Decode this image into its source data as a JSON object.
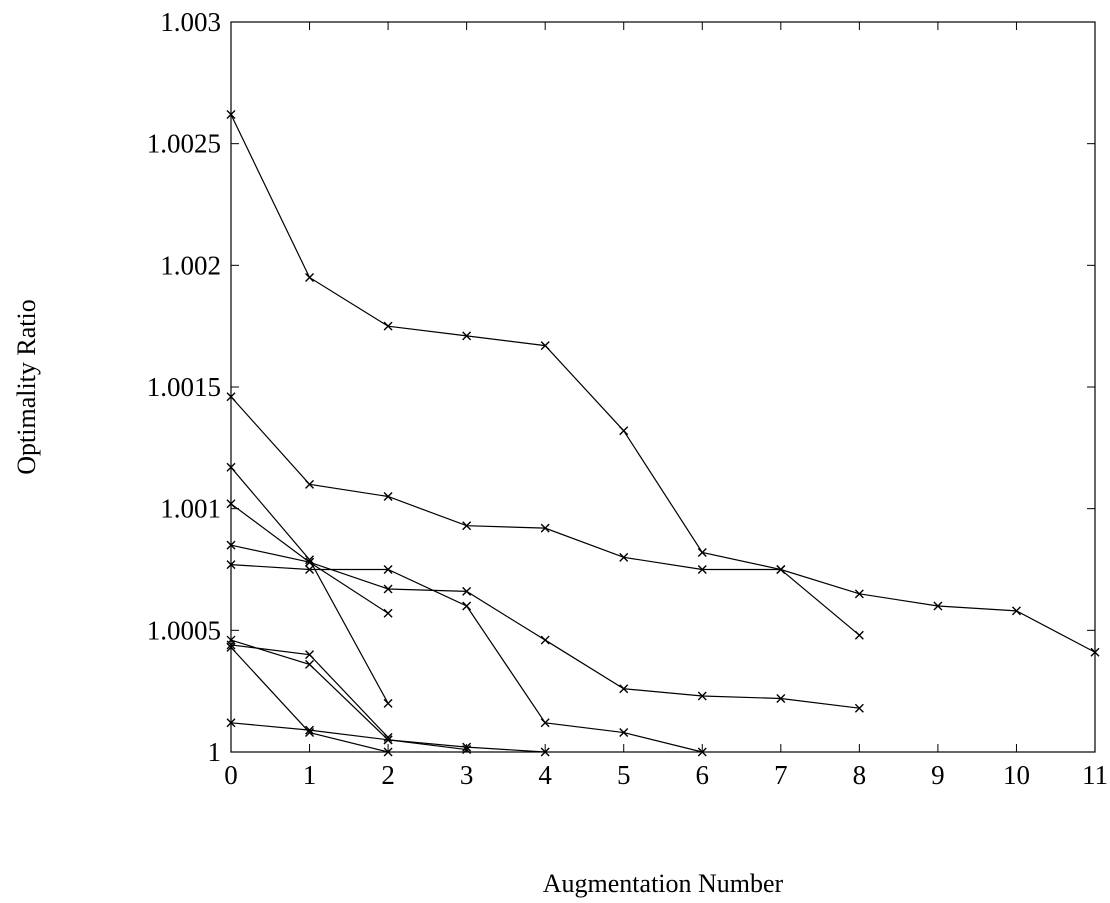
{
  "chart_data": {
    "type": "line",
    "title": "",
    "xlabel": "Augmentation Number",
    "ylabel": "Optimality Ratio",
    "xlim": [
      0,
      11
    ],
    "ylim": [
      1,
      1.003
    ],
    "grid": false,
    "marker": "x",
    "x_ticks": [
      0,
      1,
      2,
      3,
      4,
      5,
      6,
      7,
      8,
      9,
      10,
      11
    ],
    "x_tick_labels": [
      "0",
      "1",
      "2",
      "3",
      "4",
      "5",
      "6",
      "7",
      "8",
      "9",
      "10",
      "11"
    ],
    "y_ticks": [
      1,
      1.0005,
      1.001,
      1.0015,
      1.002,
      1.0025,
      1.003
    ],
    "y_tick_labels": [
      "1",
      "1.0005",
      "1.001",
      "1.0015",
      "1.002",
      "1.0025",
      "1.003"
    ],
    "series": [
      {
        "x": [
          0,
          1,
          2,
          3,
          4,
          5,
          6,
          7,
          8
        ],
        "y": [
          1.00262,
          1.00195,
          1.00175,
          1.00171,
          1.00167,
          1.00132,
          1.00082,
          1.00075,
          1.00048
        ]
      },
      {
        "x": [
          0,
          1,
          2,
          3,
          4,
          5,
          6,
          7,
          8,
          9,
          10,
          11
        ],
        "y": [
          1.00146,
          1.0011,
          1.00105,
          1.00093,
          1.00092,
          1.0008,
          1.00075,
          1.00075,
          1.00065,
          1.0006,
          1.00058,
          1.00041
        ]
      },
      {
        "x": [
          0,
          1,
          2
        ],
        "y": [
          1.00117,
          1.00079,
          1.0002
        ]
      },
      {
        "x": [
          0,
          1,
          2
        ],
        "y": [
          1.00102,
          1.00078,
          1.00057
        ]
      },
      {
        "x": [
          0,
          1,
          2,
          3,
          4,
          5,
          6,
          7,
          8
        ],
        "y": [
          1.00085,
          1.00078,
          1.00067,
          1.00066,
          1.00046,
          1.00026,
          1.00023,
          1.00022,
          1.00018
        ]
      },
      {
        "x": [
          0,
          1,
          2,
          3,
          4,
          5,
          6
        ],
        "y": [
          1.00077,
          1.00075,
          1.00075,
          1.0006,
          1.00012,
          1.00008,
          1.0
        ]
      },
      {
        "x": [
          0,
          1,
          2,
          3
        ],
        "y": [
          1.00046,
          1.00036,
          1.00005,
          1.00001
        ]
      },
      {
        "x": [
          0,
          1,
          2
        ],
        "y": [
          1.00043,
          1.00008,
          1.0
        ]
      },
      {
        "x": [
          0,
          1,
          2
        ],
        "y": [
          1.00044,
          1.0004,
          1.00006
        ]
      },
      {
        "x": [
          0,
          1,
          2,
          3,
          4
        ],
        "y": [
          1.00012,
          1.00009,
          1.00005,
          1.00002,
          1.0
        ]
      }
    ]
  }
}
